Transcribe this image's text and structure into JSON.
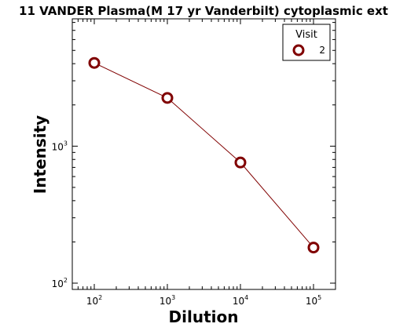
{
  "chart_data": {
    "type": "line",
    "title": "11 VANDER Plasma(M 17 yr Vanderbilt) cytoplasmic ext",
    "xlabel": "Dilution",
    "ylabel": "Intensity",
    "xscale": "log",
    "yscale": "log",
    "xlim": [
      50,
      200000
    ],
    "ylim": [
      90,
      8500
    ],
    "x_ticks": [
      {
        "value": 100,
        "label": "10",
        "exp": "2"
      },
      {
        "value": 1000,
        "label": "10",
        "exp": "3"
      },
      {
        "value": 10000,
        "label": "10",
        "exp": "4"
      },
      {
        "value": 100000,
        "label": "10",
        "exp": "5"
      }
    ],
    "y_ticks": [
      {
        "value": 100,
        "label": "10",
        "exp": "2"
      },
      {
        "value": 1000,
        "label": "10",
        "exp": "3"
      }
    ],
    "grid": false,
    "legend": {
      "title": "Visit",
      "position": "top-right"
    },
    "series": [
      {
        "name": "2",
        "color": "#800000",
        "x": [
          100,
          1000,
          10000,
          100000
        ],
        "y": [
          4050,
          2250,
          760,
          182
        ]
      }
    ]
  }
}
